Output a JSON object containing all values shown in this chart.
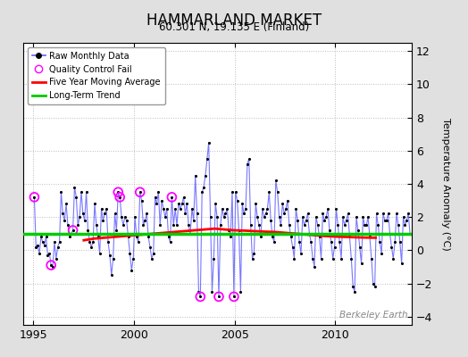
{
  "title": "HAMMARLAND MARKET",
  "subtitle": "60.301 N, 19.135 E (Finland)",
  "ylabel": "Temperature Anomaly (°C)",
  "watermark": "Berkeley Earth",
  "xlim": [
    1994.5,
    2013.8
  ],
  "ylim": [
    -4.5,
    12.5
  ],
  "yticks": [
    -4,
    -2,
    0,
    2,
    4,
    6,
    8,
    10,
    12
  ],
  "xticks": [
    1995,
    2000,
    2005,
    2010
  ],
  "background_color": "#e0e0e0",
  "plot_bg_color": "#ffffff",
  "raw_line_color": "#6060ff",
  "raw_marker_color": "#000000",
  "qc_fail_color": "#ff00ff",
  "moving_avg_color": "#ff0000",
  "trend_color": "#00cc00",
  "raw_data": [
    [
      1995.042,
      3.2
    ],
    [
      1995.125,
      0.2
    ],
    [
      1995.208,
      0.3
    ],
    [
      1995.292,
      -0.2
    ],
    [
      1995.375,
      0.8
    ],
    [
      1995.458,
      0.5
    ],
    [
      1995.542,
      0.3
    ],
    [
      1995.625,
      0.8
    ],
    [
      1995.708,
      -0.3
    ],
    [
      1995.792,
      -0.2
    ],
    [
      1995.875,
      -0.9
    ],
    [
      1995.958,
      -1.0
    ],
    [
      1996.042,
      0.5
    ],
    [
      1996.125,
      -0.5
    ],
    [
      1996.208,
      0.2
    ],
    [
      1996.292,
      0.5
    ],
    [
      1996.375,
      3.5
    ],
    [
      1996.458,
      2.2
    ],
    [
      1996.542,
      1.8
    ],
    [
      1996.625,
      2.8
    ],
    [
      1996.708,
      1.5
    ],
    [
      1996.792,
      0.8
    ],
    [
      1996.875,
      1.0
    ],
    [
      1996.958,
      1.2
    ],
    [
      1997.042,
      3.8
    ],
    [
      1997.125,
      3.2
    ],
    [
      1997.208,
      1.5
    ],
    [
      1997.292,
      2.0
    ],
    [
      1997.375,
      3.5
    ],
    [
      1997.458,
      2.2
    ],
    [
      1997.542,
      1.8
    ],
    [
      1997.625,
      3.5
    ],
    [
      1997.708,
      1.2
    ],
    [
      1997.792,
      0.5
    ],
    [
      1997.875,
      0.2
    ],
    [
      1997.958,
      0.5
    ],
    [
      1998.042,
      2.8
    ],
    [
      1998.125,
      1.5
    ],
    [
      1998.208,
      0.8
    ],
    [
      1998.292,
      -0.2
    ],
    [
      1998.375,
      2.5
    ],
    [
      1998.458,
      1.8
    ],
    [
      1998.542,
      2.2
    ],
    [
      1998.625,
      2.5
    ],
    [
      1998.708,
      0.5
    ],
    [
      1998.792,
      -0.3
    ],
    [
      1998.875,
      -1.5
    ],
    [
      1998.958,
      -0.5
    ],
    [
      1999.042,
      2.2
    ],
    [
      1999.125,
      1.2
    ],
    [
      1999.208,
      3.5
    ],
    [
      1999.292,
      3.2
    ],
    [
      1999.375,
      2.0
    ],
    [
      1999.458,
      1.5
    ],
    [
      1999.542,
      2.0
    ],
    [
      1999.625,
      1.8
    ],
    [
      1999.708,
      0.8
    ],
    [
      1999.792,
      -0.2
    ],
    [
      1999.875,
      -1.2
    ],
    [
      1999.958,
      -0.5
    ],
    [
      2000.042,
      2.0
    ],
    [
      2000.125,
      0.8
    ],
    [
      2000.208,
      0.5
    ],
    [
      2000.292,
      3.5
    ],
    [
      2000.375,
      3.0
    ],
    [
      2000.458,
      1.5
    ],
    [
      2000.542,
      1.8
    ],
    [
      2000.625,
      2.2
    ],
    [
      2000.708,
      0.8
    ],
    [
      2000.792,
      0.2
    ],
    [
      2000.875,
      -0.5
    ],
    [
      2000.958,
      -0.2
    ],
    [
      2001.042,
      3.2
    ],
    [
      2001.125,
      2.8
    ],
    [
      2001.208,
      3.5
    ],
    [
      2001.292,
      1.5
    ],
    [
      2001.375,
      3.0
    ],
    [
      2001.458,
      2.5
    ],
    [
      2001.542,
      2.0
    ],
    [
      2001.625,
      2.5
    ],
    [
      2001.708,
      0.8
    ],
    [
      2001.792,
      0.5
    ],
    [
      2001.875,
      3.2
    ],
    [
      2001.958,
      1.5
    ],
    [
      2002.042,
      2.5
    ],
    [
      2002.125,
      1.5
    ],
    [
      2002.208,
      2.8
    ],
    [
      2002.292,
      2.5
    ],
    [
      2002.375,
      2.8
    ],
    [
      2002.458,
      3.2
    ],
    [
      2002.542,
      2.2
    ],
    [
      2002.625,
      2.8
    ],
    [
      2002.708,
      1.5
    ],
    [
      2002.792,
      1.0
    ],
    [
      2002.875,
      2.5
    ],
    [
      2002.958,
      1.8
    ],
    [
      2003.042,
      4.5
    ],
    [
      2003.125,
      2.2
    ],
    [
      2003.208,
      -2.5
    ],
    [
      2003.292,
      -2.8
    ],
    [
      2003.375,
      3.5
    ],
    [
      2003.458,
      3.8
    ],
    [
      2003.542,
      4.5
    ],
    [
      2003.625,
      5.5
    ],
    [
      2003.708,
      6.5
    ],
    [
      2003.792,
      2.0
    ],
    [
      2003.875,
      -2.5
    ],
    [
      2003.958,
      -0.5
    ],
    [
      2004.042,
      2.8
    ],
    [
      2004.125,
      2.0
    ],
    [
      2004.208,
      -2.8
    ],
    [
      2004.292,
      1.5
    ],
    [
      2004.375,
      2.5
    ],
    [
      2004.458,
      2.0
    ],
    [
      2004.542,
      2.2
    ],
    [
      2004.625,
      2.5
    ],
    [
      2004.708,
      1.2
    ],
    [
      2004.792,
      0.8
    ],
    [
      2004.875,
      3.5
    ],
    [
      2004.958,
      -2.8
    ],
    [
      2005.042,
      3.5
    ],
    [
      2005.125,
      3.0
    ],
    [
      2005.208,
      1.2
    ],
    [
      2005.292,
      -2.5
    ],
    [
      2005.375,
      2.8
    ],
    [
      2005.458,
      2.2
    ],
    [
      2005.542,
      2.5
    ],
    [
      2005.625,
      5.2
    ],
    [
      2005.708,
      5.5
    ],
    [
      2005.792,
      1.5
    ],
    [
      2005.875,
      -0.5
    ],
    [
      2005.958,
      -0.2
    ],
    [
      2006.042,
      2.8
    ],
    [
      2006.125,
      2.0
    ],
    [
      2006.208,
      1.5
    ],
    [
      2006.292,
      0.8
    ],
    [
      2006.375,
      2.5
    ],
    [
      2006.458,
      2.0
    ],
    [
      2006.542,
      2.2
    ],
    [
      2006.625,
      2.5
    ],
    [
      2006.708,
      3.5
    ],
    [
      2006.792,
      1.8
    ],
    [
      2006.875,
      0.8
    ],
    [
      2006.958,
      0.5
    ],
    [
      2007.042,
      4.2
    ],
    [
      2007.125,
      3.5
    ],
    [
      2007.208,
      2.0
    ],
    [
      2007.292,
      1.5
    ],
    [
      2007.375,
      2.8
    ],
    [
      2007.458,
      2.2
    ],
    [
      2007.542,
      2.5
    ],
    [
      2007.625,
      3.0
    ],
    [
      2007.708,
      1.5
    ],
    [
      2007.792,
      0.8
    ],
    [
      2007.875,
      0.2
    ],
    [
      2007.958,
      -0.5
    ],
    [
      2008.042,
      2.5
    ],
    [
      2008.125,
      1.8
    ],
    [
      2008.208,
      0.5
    ],
    [
      2008.292,
      -0.2
    ],
    [
      2008.375,
      2.0
    ],
    [
      2008.458,
      1.5
    ],
    [
      2008.542,
      1.8
    ],
    [
      2008.625,
      2.2
    ],
    [
      2008.708,
      1.0
    ],
    [
      2008.792,
      0.5
    ],
    [
      2008.875,
      -0.5
    ],
    [
      2008.958,
      -1.0
    ],
    [
      2009.042,
      2.0
    ],
    [
      2009.125,
      1.5
    ],
    [
      2009.208,
      0.8
    ],
    [
      2009.292,
      -0.5
    ],
    [
      2009.375,
      2.2
    ],
    [
      2009.458,
      1.8
    ],
    [
      2009.542,
      2.0
    ],
    [
      2009.625,
      2.5
    ],
    [
      2009.708,
      1.2
    ],
    [
      2009.792,
      0.5
    ],
    [
      2009.875,
      -0.5
    ],
    [
      2009.958,
      0.2
    ],
    [
      2010.042,
      2.5
    ],
    [
      2010.125,
      1.5
    ],
    [
      2010.208,
      0.5
    ],
    [
      2010.292,
      -0.5
    ],
    [
      2010.375,
      2.0
    ],
    [
      2010.458,
      1.5
    ],
    [
      2010.542,
      1.8
    ],
    [
      2010.625,
      2.2
    ],
    [
      2010.708,
      0.8
    ],
    [
      2010.792,
      -0.5
    ],
    [
      2010.875,
      -2.2
    ],
    [
      2010.958,
      -2.5
    ],
    [
      2011.042,
      2.0
    ],
    [
      2011.125,
      1.2
    ],
    [
      2011.208,
      0.2
    ],
    [
      2011.292,
      -0.8
    ],
    [
      2011.375,
      2.0
    ],
    [
      2011.458,
      1.5
    ],
    [
      2011.542,
      1.5
    ],
    [
      2011.625,
      2.0
    ],
    [
      2011.708,
      0.8
    ],
    [
      2011.792,
      -0.5
    ],
    [
      2011.875,
      -2.0
    ],
    [
      2011.958,
      -2.2
    ],
    [
      2012.042,
      2.2
    ],
    [
      2012.125,
      1.5
    ],
    [
      2012.208,
      0.5
    ],
    [
      2012.292,
      -0.2
    ],
    [
      2012.375,
      2.2
    ],
    [
      2012.458,
      1.8
    ],
    [
      2012.542,
      1.8
    ],
    [
      2012.625,
      2.2
    ],
    [
      2012.708,
      1.0
    ],
    [
      2012.792,
      0.2
    ],
    [
      2012.875,
      -0.5
    ],
    [
      2012.958,
      0.5
    ],
    [
      2013.042,
      2.2
    ],
    [
      2013.125,
      1.5
    ],
    [
      2013.208,
      0.5
    ],
    [
      2013.292,
      -0.8
    ],
    [
      2013.375,
      2.0
    ],
    [
      2013.458,
      1.5
    ],
    [
      2013.542,
      1.8
    ],
    [
      2013.625,
      2.2
    ],
    [
      2013.708,
      1.0
    ]
  ],
  "qc_fail_points": [
    [
      1995.042,
      3.2
    ],
    [
      1995.875,
      -0.9
    ],
    [
      1996.958,
      1.2
    ],
    [
      1999.208,
      3.5
    ],
    [
      1999.292,
      3.2
    ],
    [
      2000.292,
      3.5
    ],
    [
      2001.875,
      3.2
    ],
    [
      2003.292,
      -2.8
    ],
    [
      2004.208,
      -2.8
    ],
    [
      2004.958,
      -2.8
    ]
  ],
  "moving_avg": [
    [
      1997.5,
      0.6
    ],
    [
      1998.0,
      0.7
    ],
    [
      1998.5,
      0.75
    ],
    [
      1999.0,
      0.8
    ],
    [
      1999.5,
      0.85
    ],
    [
      2000.0,
      0.9
    ],
    [
      2000.5,
      0.95
    ],
    [
      2001.0,
      1.0
    ],
    [
      2001.5,
      1.05
    ],
    [
      2002.0,
      1.1
    ],
    [
      2002.5,
      1.15
    ],
    [
      2003.0,
      1.2
    ],
    [
      2003.5,
      1.25
    ],
    [
      2004.0,
      1.3
    ],
    [
      2004.5,
      1.25
    ],
    [
      2005.0,
      1.2
    ],
    [
      2005.5,
      1.18
    ],
    [
      2006.0,
      1.15
    ],
    [
      2006.5,
      1.12
    ],
    [
      2007.0,
      1.1
    ],
    [
      2007.5,
      1.05
    ],
    [
      2008.0,
      1.0
    ],
    [
      2008.5,
      0.95
    ],
    [
      2009.0,
      0.9
    ],
    [
      2009.5,
      0.85
    ],
    [
      2010.0,
      0.82
    ],
    [
      2010.5,
      0.8
    ],
    [
      2011.0,
      0.78
    ],
    [
      2011.5,
      0.76
    ],
    [
      2012.0,
      0.75
    ]
  ],
  "trend_start_x": 1994.5,
  "trend_end_x": 2013.8,
  "trend_y": 1.0
}
